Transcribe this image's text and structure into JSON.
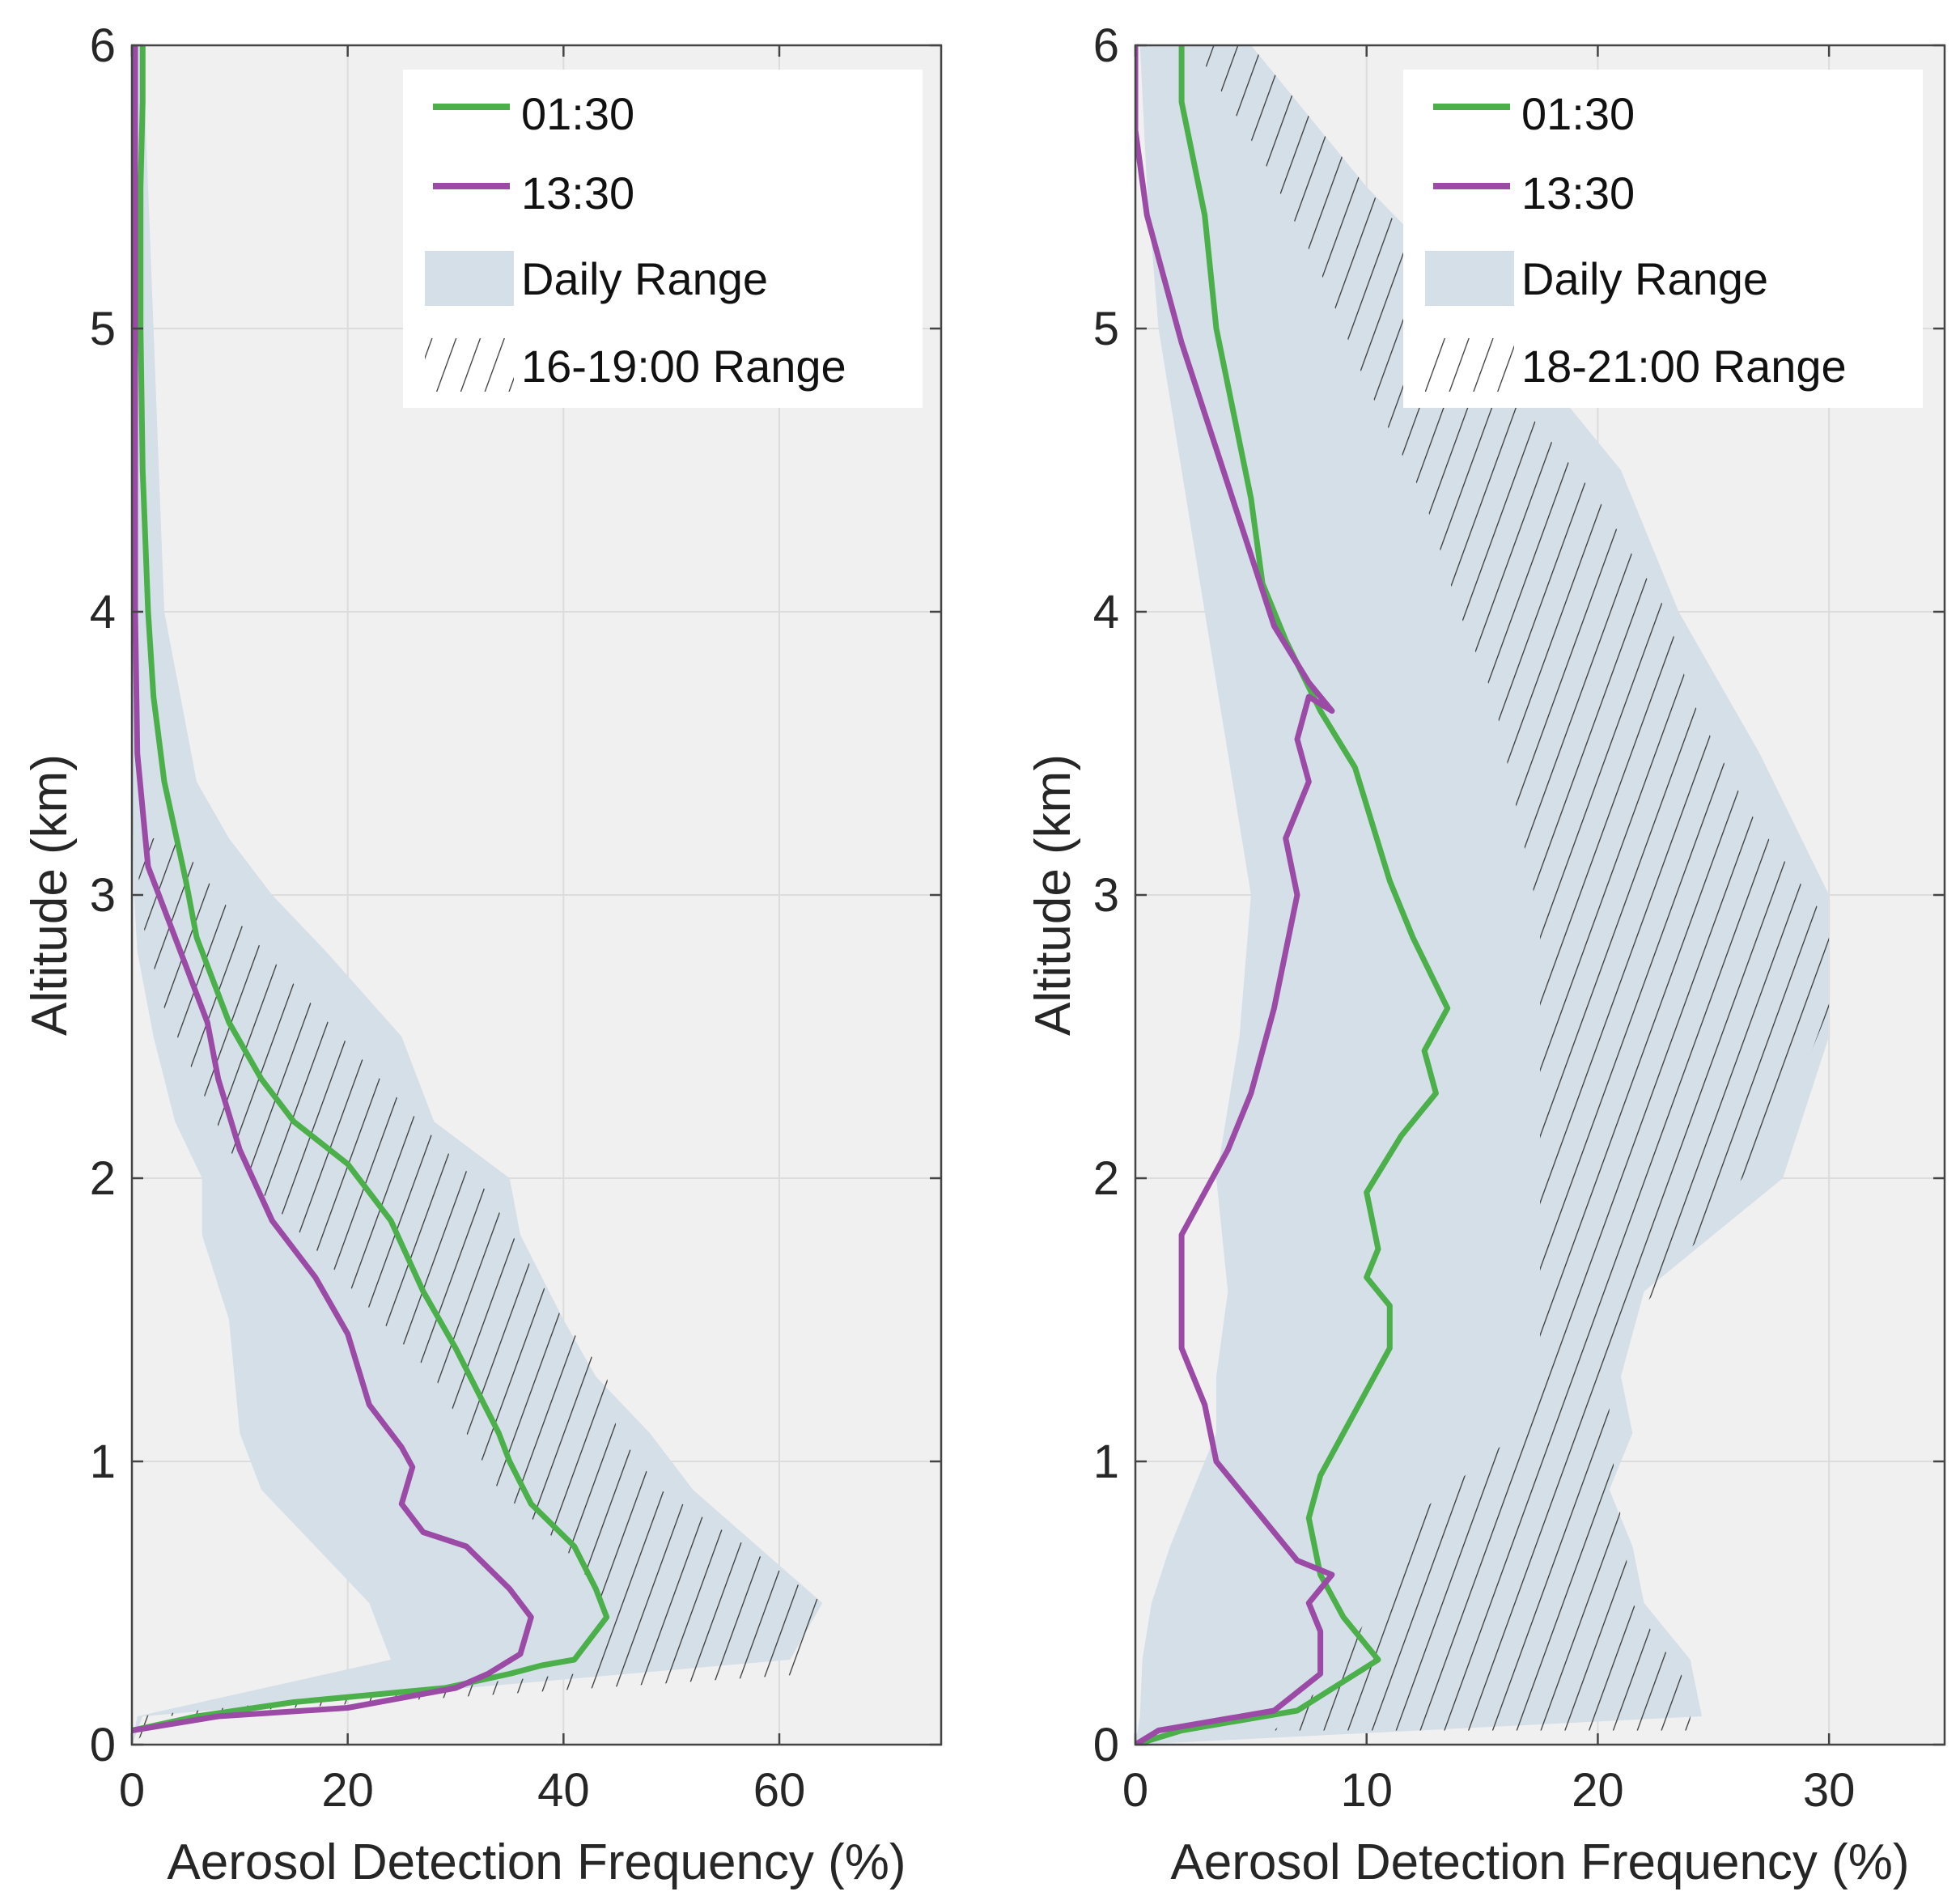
{
  "colors": {
    "green": "#4bb04a",
    "purple": "#9b4aa6",
    "daily_fill": "#d4dfe8",
    "plot_bg": "#f0f0f0",
    "grid": "#dcdcdc",
    "hatch": "#3a3a3a",
    "axis": "#444444"
  },
  "chart_data": [
    {
      "type": "line",
      "title": "",
      "xlabel": "Aerosol Detection Frequency (%)",
      "ylabel": "Altitude (km)",
      "xlim": [
        0,
        75
      ],
      "ylim": [
        0,
        6
      ],
      "xticks": [
        0,
        20,
        40,
        60
      ],
      "yticks": [
        0,
        1,
        2,
        3,
        4,
        5,
        6
      ],
      "xtick_labels": [
        "0",
        "20",
        "40",
        "60"
      ],
      "ytick_labels": [
        "0",
        "1",
        "2",
        "3",
        "4",
        "5",
        "6"
      ],
      "grid": true,
      "legend_position": "top-right",
      "legend": [
        {
          "label": "01:30",
          "kind": "line",
          "color": "#4bb04a"
        },
        {
          "label": "13:30",
          "kind": "line",
          "color": "#9b4aa6"
        },
        {
          "label": "Daily Range",
          "kind": "fill"
        },
        {
          "label": "16-19:00 Range",
          "kind": "hatch"
        }
      ],
      "series": [
        {
          "name": "01:30",
          "color": "#4bb04a",
          "x": [
            0,
            6,
            15,
            29,
            35,
            38,
            41,
            44,
            43,
            41,
            37,
            35,
            34,
            30,
            27,
            24,
            20,
            15,
            12,
            9,
            8,
            6,
            5,
            3,
            2,
            1.5,
            1,
            0.8,
            0.8,
            1,
            1
          ],
          "y": [
            0.05,
            0.1,
            0.15,
            0.2,
            0.25,
            0.28,
            0.3,
            0.45,
            0.55,
            0.7,
            0.85,
            1.0,
            1.1,
            1.4,
            1.6,
            1.85,
            2.05,
            2.2,
            2.35,
            2.55,
            2.65,
            2.85,
            3.05,
            3.4,
            3.7,
            4.0,
            4.5,
            5.0,
            5.5,
            5.8,
            6.0
          ]
        },
        {
          "name": "13:30",
          "color": "#9b4aa6",
          "x": [
            0,
            8,
            20,
            30,
            33,
            36,
            37,
            35,
            31,
            27,
            25,
            26,
            25,
            22,
            20,
            17,
            13,
            10,
            8,
            7,
            5,
            3,
            1.5,
            1,
            0.5,
            0.3,
            0.3
          ],
          "y": [
            0.05,
            0.1,
            0.13,
            0.2,
            0.25,
            0.32,
            0.45,
            0.55,
            0.7,
            0.75,
            0.85,
            0.98,
            1.05,
            1.2,
            1.45,
            1.65,
            1.85,
            2.1,
            2.35,
            2.55,
            2.75,
            2.95,
            3.1,
            3.3,
            3.5,
            4.0,
            6.0
          ]
        },
        {
          "name": "Daily Range",
          "kind": "band",
          "y": [
            0,
            0.1,
            0.3,
            0.5,
            0.7,
            0.9,
            1.1,
            1.3,
            1.5,
            1.8,
            2.0,
            2.2,
            2.5,
            2.8,
            3.0,
            3.2,
            3.4,
            3.6,
            4.0,
            4.5,
            5.0,
            5.5,
            6.0
          ],
          "x_low": [
            0,
            0.5,
            24,
            22,
            17,
            12,
            10,
            9.5,
            9,
            6.5,
            6.5,
            4,
            2,
            0.5,
            0.2,
            0.1,
            0,
            0,
            0,
            0,
            0,
            0,
            0
          ],
          "x_high": [
            0,
            1,
            61,
            64,
            58,
            52,
            48,
            43,
            40,
            36,
            35,
            28,
            25,
            18,
            13,
            9,
            6,
            5,
            3,
            2.5,
            2,
            1.5,
            1
          ]
        },
        {
          "name": "16-19:00 Range",
          "kind": "hatch",
          "y": [
            0,
            0.1,
            0.25,
            0.5,
            0.7,
            0.9,
            1.1,
            1.3,
            1.5,
            1.75,
            1.95,
            2.1,
            2.35,
            2.6,
            2.9,
            3.2
          ],
          "x_low": [
            0,
            0.5,
            41,
            44,
            40,
            34,
            31,
            28,
            23,
            17,
            12,
            9,
            6,
            3,
            1,
            0.3
          ],
          "x_high": [
            0,
            3,
            63,
            64,
            57,
            49,
            45,
            44,
            40,
            36,
            33,
            29,
            23,
            17,
            10,
            4
          ]
        }
      ]
    },
    {
      "type": "line",
      "title": "",
      "xlabel": "Aerosol Detection Frequency (%)",
      "ylabel": "Altitude (km)",
      "xlim": [
        0,
        35
      ],
      "ylim": [
        0,
        6
      ],
      "xticks": [
        0,
        10,
        20,
        30
      ],
      "yticks": [
        0,
        1,
        2,
        3,
        4,
        5,
        6
      ],
      "xtick_labels": [
        "0",
        "10",
        "20",
        "30"
      ],
      "ytick_labels": [
        "0",
        "1",
        "2",
        "3",
        "4",
        "5",
        "6"
      ],
      "grid": true,
      "legend_position": "top-right",
      "legend": [
        {
          "label": "01:30",
          "kind": "line",
          "color": "#4bb04a"
        },
        {
          "label": "13:30",
          "kind": "line",
          "color": "#9b4aa6"
        },
        {
          "label": "Daily Range",
          "kind": "fill"
        },
        {
          "label": "18-21:00 Range",
          "kind": "hatch"
        }
      ],
      "series": [
        {
          "name": "01:30",
          "color": "#4bb04a",
          "x": [
            0,
            2,
            7,
            10.5,
            9,
            8,
            7.5,
            8,
            9,
            10,
            11,
            11,
            10,
            10.5,
            10,
            11.5,
            13,
            12.5,
            13.5,
            12,
            11,
            9.5,
            8,
            6.5,
            5.5,
            5,
            4.5,
            4,
            3.5,
            3,
            2,
            2
          ],
          "y": [
            0,
            0.05,
            0.12,
            0.3,
            0.45,
            0.6,
            0.8,
            0.95,
            1.1,
            1.25,
            1.4,
            1.55,
            1.65,
            1.75,
            1.95,
            2.15,
            2.3,
            2.45,
            2.6,
            2.85,
            3.05,
            3.45,
            3.65,
            3.9,
            4.1,
            4.4,
            4.6,
            4.8,
            5.0,
            5.4,
            5.8,
            6.0
          ]
        },
        {
          "name": "13:30",
          "color": "#9b4aa6",
          "x": [
            0,
            1,
            6,
            8,
            8,
            7.5,
            8.5,
            7,
            6,
            3.5,
            3,
            2,
            2,
            2,
            3,
            4,
            5,
            6,
            6.5,
            7,
            6.5,
            7.5,
            7,
            7.5,
            8.5,
            7.5,
            6,
            5,
            4,
            3,
            2,
            0.5,
            0,
            0
          ],
          "y": [
            0,
            0.05,
            0.12,
            0.25,
            0.4,
            0.5,
            0.6,
            0.65,
            0.75,
            1.0,
            1.2,
            1.4,
            1.6,
            1.8,
            1.95,
            2.1,
            2.3,
            2.6,
            2.8,
            3.0,
            3.2,
            3.4,
            3.55,
            3.7,
            3.65,
            3.75,
            3.95,
            4.2,
            4.45,
            4.7,
            4.95,
            5.4,
            5.7,
            6.0
          ]
        },
        {
          "name": "Daily Range",
          "kind": "band",
          "y": [
            0,
            0.1,
            0.3,
            0.5,
            0.7,
            0.9,
            1.1,
            1.3,
            1.6,
            2.0,
            2.5,
            3.0,
            3.5,
            4.0,
            4.5,
            5.0,
            5.5,
            6.0
          ],
          "x_low": [
            0,
            0.2,
            0.3,
            0.7,
            1.5,
            2.5,
            3.5,
            3.5,
            4.0,
            3.5,
            4.5,
            5.0,
            4.0,
            3.0,
            2.0,
            1.0,
            0.5,
            0.2
          ],
          "x_high": [
            0,
            24.5,
            24,
            22,
            21.5,
            20.5,
            21.5,
            21,
            22,
            28,
            30,
            30,
            27,
            23.5,
            21,
            16,
            10,
            5
          ]
        },
        {
          "name": "18-21:00 Range",
          "kind": "hatch",
          "y": [
            0.05,
            0.2,
            0.5,
            0.8,
            1.1,
            1.4,
            1.8,
            2.2,
            2.6,
            2.9,
            3.3,
            3.7,
            4.0,
            4.4,
            4.8,
            5.2,
            5.6,
            6.0
          ],
          "x_low": [
            6,
            8,
            10.5,
            12,
            16.5,
            17.5,
            17.5,
            17.5,
            17.5,
            17.5,
            16.5,
            15.5,
            14,
            12.5,
            10,
            8,
            5.5,
            2.5
          ],
          "x_high": [
            24,
            24,
            21.5,
            21,
            20.5,
            20.5,
            24.5,
            28,
            30,
            30,
            26.5,
            24,
            23,
            20,
            16,
            13,
            9,
            5
          ]
        }
      ]
    }
  ]
}
